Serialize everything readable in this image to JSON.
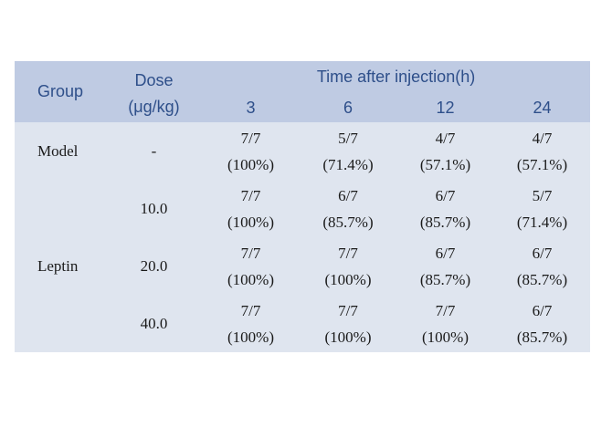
{
  "header": {
    "group": "Group",
    "dose_line1": "Dose",
    "dose_line2": "(μg/kg)",
    "time": "Time after injection(h)",
    "timepoints": [
      "3",
      "6",
      "12",
      "24"
    ]
  },
  "rows": [
    {
      "group": "Model",
      "dose": "-",
      "cells": [
        [
          "7/7",
          "(100%)"
        ],
        [
          "5/7",
          "(71.4%)"
        ],
        [
          "4/7",
          "(57.1%)"
        ],
        [
          "4/7",
          "(57.1%)"
        ]
      ]
    },
    {
      "group": "Leptin",
      "dose": "10.0",
      "cells": [
        [
          "7/7",
          "(100%)"
        ],
        [
          "6/7",
          "(85.7%)"
        ],
        [
          "6/7",
          "(85.7%)"
        ],
        [
          "5/7",
          "(71.4%)"
        ]
      ]
    },
    {
      "group": "",
      "dose": "20.0",
      "cells": [
        [
          "7/7",
          "(100%)"
        ],
        [
          "7/7",
          "(100%)"
        ],
        [
          "6/7",
          "(85.7%)"
        ],
        [
          "6/7",
          "(85.7%)"
        ]
      ]
    },
    {
      "group": "",
      "dose": "40.0",
      "cells": [
        [
          "7/7",
          "(100%)"
        ],
        [
          "7/7",
          "(100%)"
        ],
        [
          "7/7",
          "(100%)"
        ],
        [
          "6/7",
          "(85.7%)"
        ]
      ]
    }
  ],
  "colors": {
    "header_bg": "#bfcbe3",
    "body_bg": "#dfe5ef",
    "header_text": "#2e4f8a"
  }
}
